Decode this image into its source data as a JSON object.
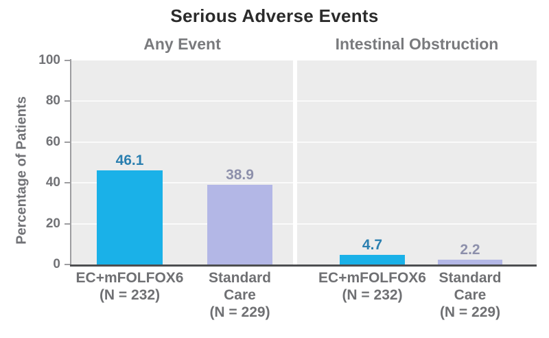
{
  "chart_data": {
    "type": "bar",
    "title": "Serious Adverse Events",
    "ylabel": "Percentage of Patients",
    "ylim": [
      0,
      100
    ],
    "yticks": [
      0,
      20,
      40,
      60,
      80,
      100
    ],
    "grid": true,
    "legend": "none",
    "panels": [
      {
        "label": "Any Event",
        "bars": [
          {
            "series": "EC+mFOLFOX6",
            "category_lines": [
              "EC+mFOLFOX6",
              "(N = 232)"
            ],
            "value": 46.1,
            "value_label": "46.1",
            "bar_color": "#1ab1e8",
            "value_color": "#2a7fb0"
          },
          {
            "series": "Standard Care",
            "category_lines": [
              "Standard",
              "Care",
              "(N = 229)"
            ],
            "value": 38.9,
            "value_label": "38.9",
            "bar_color": "#b3b7e6",
            "value_color": "#8d90ab"
          }
        ]
      },
      {
        "label": "Intestinal Obstruction",
        "bars": [
          {
            "series": "EC+mFOLFOX6",
            "category_lines": [
              "EC+mFOLFOX6",
              "(N = 232)"
            ],
            "value": 4.7,
            "value_label": "4.7",
            "bar_color": "#1ab1e8",
            "value_color": "#2a7fb0"
          },
          {
            "series": "Standard Care",
            "category_lines": [
              "Standard",
              "Care",
              "(N = 229)"
            ],
            "value": 2.2,
            "value_label": "2.2",
            "bar_color": "#b3b7e6",
            "value_color": "#8d90ab"
          }
        ]
      }
    ],
    "colors": {
      "plot_background": "#ececec",
      "gridline": "#fafafa",
      "axis_spine": "#9d9da0",
      "baseline": "#4d4e50",
      "title_text": "#2b2b2b",
      "panel_label_text": "#797a7d",
      "tick_text": "#717276",
      "category_text": "#6f7073"
    }
  }
}
